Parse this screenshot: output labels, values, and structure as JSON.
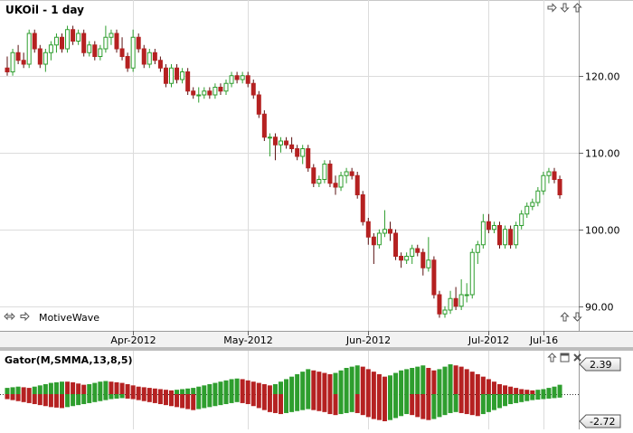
{
  "header": {
    "title": "UKOil - 1 day"
  },
  "footer": {
    "brand": "MotiveWave"
  },
  "colors": {
    "up": "#2e9e2e",
    "down": "#b52121",
    "grid": "#dcdcdc",
    "axis": "#9a9a9a"
  },
  "icons": {
    "top_right": [
      "arrow-right-icon",
      "arrow-down-icon",
      "arrow-up-icon"
    ],
    "bottom_left": [
      "double-arrow-icon",
      "arrow-right-icon"
    ],
    "bottom_right": [
      "arrow-up-icon",
      "arrow-down-icon"
    ],
    "indicator": [
      "arrow-up-icon",
      "window-icon",
      "close-icon"
    ]
  },
  "chart_data": [
    {
      "type": "candlestick",
      "title": "UKOil - 1 day",
      "ylim": [
        87.5,
        127.5
      ],
      "y_ticks": [
        {
          "v": 90,
          "label": "90.00"
        },
        {
          "v": 100,
          "label": "100.00"
        },
        {
          "v": 110,
          "label": "110.00"
        },
        {
          "v": 120,
          "label": "120.00"
        }
      ],
      "x_ticks": [
        {
          "i": 23,
          "label": "Apr-2012"
        },
        {
          "i": 44,
          "label": "May-2012"
        },
        {
          "i": 66,
          "label": "Jun-2012"
        },
        {
          "i": 88,
          "label": "Jul-2012"
        },
        {
          "i": 98,
          "label": "Jul-16"
        }
      ],
      "ohlc": [
        [
          121,
          122.5,
          120,
          120.5
        ],
        [
          120.5,
          123.5,
          120,
          123
        ],
        [
          123,
          124,
          121.5,
          122
        ],
        [
          122,
          123,
          121,
          121.5
        ],
        [
          121.5,
          126,
          121,
          125.5
        ],
        [
          125.5,
          126,
          123,
          123.5
        ],
        [
          123.5,
          124,
          121,
          121.5
        ],
        [
          121.5,
          123.5,
          120.5,
          123
        ],
        [
          123,
          124.5,
          122,
          124
        ],
        [
          124,
          125.5,
          123,
          125
        ],
        [
          125,
          125.5,
          123,
          123.5
        ],
        [
          123.5,
          126.5,
          123,
          126
        ],
        [
          126,
          126.5,
          124,
          124.5
        ],
        [
          124.5,
          126,
          124,
          125.5
        ],
        [
          125.5,
          126,
          122.5,
          123
        ],
        [
          123,
          124.5,
          122.5,
          124
        ],
        [
          124,
          124.5,
          122,
          122.5
        ],
        [
          122.5,
          124,
          122,
          123.5
        ],
        [
          123.5,
          126.5,
          123,
          125
        ],
        [
          125,
          126,
          124,
          125.5
        ],
        [
          125.5,
          126,
          123,
          123.5
        ],
        [
          123.5,
          125,
          122,
          122.5
        ],
        [
          122.5,
          123,
          120.5,
          121
        ],
        [
          121,
          126,
          120.5,
          125
        ],
        [
          125,
          125.5,
          123,
          123.5
        ],
        [
          123.5,
          124,
          121,
          121.5
        ],
        [
          121.5,
          123.5,
          121,
          123
        ],
        [
          123,
          123.5,
          121.5,
          122
        ],
        [
          122,
          122.5,
          120.5,
          121
        ],
        [
          121,
          121.5,
          118.5,
          119
        ],
        [
          119,
          121.5,
          118.5,
          121
        ],
        [
          121,
          121.5,
          119,
          119.5
        ],
        [
          119.5,
          121,
          119,
          120.5
        ],
        [
          120.5,
          121,
          117.5,
          118
        ],
        [
          118,
          118.5,
          117,
          117.5
        ],
        [
          117.5,
          118.5,
          116.5,
          117.5
        ],
        [
          117.5,
          118.5,
          117,
          118
        ],
        [
          118,
          118.5,
          117,
          117.5
        ],
        [
          117.5,
          119,
          117,
          118.5
        ],
        [
          118.5,
          119,
          117.5,
          118
        ],
        [
          118,
          119.5,
          117.5,
          119
        ],
        [
          119,
          120.5,
          118.5,
          120
        ],
        [
          120,
          120.5,
          119,
          119.5
        ],
        [
          119.5,
          120.5,
          119,
          120
        ],
        [
          120,
          120.5,
          118.5,
          119
        ],
        [
          119,
          119.5,
          117,
          117.5
        ],
        [
          117.5,
          118,
          114.5,
          115
        ],
        [
          115,
          115.5,
          111.5,
          112
        ],
        [
          112,
          112.5,
          109.5,
          112
        ],
        [
          112,
          112.5,
          109,
          111
        ],
        [
          111,
          112,
          110,
          111.5
        ],
        [
          111.5,
          112,
          110.5,
          111
        ],
        [
          111,
          112,
          110,
          110.5
        ],
        [
          110.5,
          111,
          109,
          109.5
        ],
        [
          109.5,
          111,
          108.5,
          110.5
        ],
        [
          110.5,
          111,
          107.5,
          108
        ],
        [
          108,
          108.5,
          105.5,
          106
        ],
        [
          106,
          107,
          105.5,
          106.5
        ],
        [
          106.5,
          109,
          106,
          108.5
        ],
        [
          108.5,
          109,
          105.5,
          106
        ],
        [
          106,
          107,
          104.5,
          105.5
        ],
        [
          105.5,
          107.5,
          105,
          107
        ],
        [
          107,
          108,
          106,
          107.5
        ],
        [
          107.5,
          108,
          106.5,
          107
        ],
        [
          107,
          107.5,
          104,
          104.5
        ],
        [
          104.5,
          105,
          100.5,
          101
        ],
        [
          101,
          101.5,
          98,
          99
        ],
        [
          99,
          99.5,
          95.5,
          98
        ],
        [
          98,
          100,
          97.5,
          99.5
        ],
        [
          99.5,
          102.5,
          99,
          100
        ],
        [
          100,
          101,
          98.5,
          99.5
        ],
        [
          99.5,
          100,
          96,
          96.5
        ],
        [
          96.5,
          97,
          95,
          96
        ],
        [
          96,
          97,
          95.5,
          96.5
        ],
        [
          96.5,
          98,
          95.5,
          97.5
        ],
        [
          97.5,
          98,
          96.5,
          97
        ],
        [
          97,
          97.5,
          94,
          95
        ],
        [
          95,
          99,
          94.5,
          96
        ],
        [
          96,
          96.5,
          91,
          91.5
        ],
        [
          91.5,
          92,
          88.5,
          89
        ],
        [
          89,
          90,
          88.5,
          89.5
        ],
        [
          89.5,
          92,
          89,
          91
        ],
        [
          91,
          92.5,
          89.5,
          90
        ],
        [
          90,
          93.5,
          89.5,
          91.5
        ],
        [
          91.5,
          93,
          90.5,
          91.5
        ],
        [
          91.5,
          97.5,
          91,
          97
        ],
        [
          97,
          98.5,
          95.5,
          98
        ],
        [
          98,
          102,
          97.5,
          101
        ],
        [
          101,
          102,
          99.5,
          100
        ],
        [
          100,
          101,
          99.5,
          100.5
        ],
        [
          100.5,
          101,
          97.5,
          98
        ],
        [
          98,
          100.5,
          97.5,
          100
        ],
        [
          100,
          100.5,
          97.5,
          98
        ],
        [
          98,
          101,
          97.5,
          100.5
        ],
        [
          100.5,
          102.5,
          100,
          102
        ],
        [
          102,
          103.5,
          101.5,
          103
        ],
        [
          103,
          104,
          102.5,
          103.5
        ],
        [
          103.5,
          105.5,
          103,
          105
        ],
        [
          105,
          107.5,
          104.5,
          107
        ],
        [
          107,
          108,
          106,
          107.5
        ],
        [
          107.5,
          108,
          106,
          106.5
        ],
        [
          106.5,
          107,
          104,
          104.5
        ]
      ]
    },
    {
      "type": "bar",
      "title": "Gator(M,SMMA,13,8,5)",
      "ylim": [
        -2.72,
        2.39
      ],
      "y_ticks": [
        {
          "v": 2.39,
          "label": "2.39"
        },
        {
          "v": -2.72,
          "label": "-2.72"
        }
      ],
      "series": [
        {
          "values": [
            0.5,
            0.55,
            0.6,
            0.55,
            0.5,
            0.6,
            0.7,
            0.8,
            0.9,
            0.95,
            1.0,
            1.0,
            0.95,
            0.85,
            0.75,
            0.8,
            0.9,
            1.0,
            1.05,
            1.0,
            0.95,
            0.9,
            0.8,
            0.7,
            0.6,
            0.55,
            0.5,
            0.45,
            0.4,
            0.35,
            0.3,
            0.35,
            0.4,
            0.45,
            0.5,
            0.6,
            0.7,
            0.8,
            0.9,
            1.0,
            1.1,
            1.2,
            1.25,
            1.2,
            1.1,
            1.0,
            0.9,
            0.8,
            0.7,
            0.8,
            1.0,
            1.2,
            1.4,
            1.6,
            1.8,
            2.0,
            1.9,
            1.8,
            1.7,
            1.6,
            1.7,
            1.9,
            2.1,
            2.2,
            2.3,
            2.2,
            2.0,
            1.8,
            1.6,
            1.4,
            1.5,
            1.7,
            1.9,
            2.0,
            2.1,
            2.2,
            2.3,
            2.1,
            1.9,
            2.0,
            2.2,
            2.39,
            2.3,
            2.2,
            2.0,
            1.8,
            1.6,
            1.4,
            1.2,
            1.0,
            0.8,
            0.7,
            0.6,
            0.5,
            0.4,
            0.35,
            0.3,
            0.35,
            0.4,
            0.5,
            0.6,
            0.75
          ],
          "colors": [
            "#2e9e2e",
            "#2e9e2e",
            "#2e9e2e",
            "#b52121",
            "#b52121",
            "#2e9e2e",
            "#2e9e2e",
            "#2e9e2e",
            "#2e9e2e",
            "#2e9e2e",
            "#2e9e2e",
            "#b52121",
            "#b52121",
            "#b52121",
            "#b52121",
            "#2e9e2e",
            "#2e9e2e",
            "#2e9e2e",
            "#2e9e2e",
            "#b52121",
            "#b52121",
            "#b52121",
            "#b52121",
            "#b52121",
            "#b52121",
            "#b52121",
            "#b52121",
            "#b52121",
            "#b52121",
            "#b52121",
            "#b52121",
            "#2e9e2e",
            "#2e9e2e",
            "#2e9e2e",
            "#2e9e2e",
            "#2e9e2e",
            "#2e9e2e",
            "#2e9e2e",
            "#2e9e2e",
            "#2e9e2e",
            "#2e9e2e",
            "#2e9e2e",
            "#2e9e2e",
            "#b52121",
            "#b52121",
            "#b52121",
            "#b52121",
            "#b52121",
            "#b52121",
            "#2e9e2e",
            "#2e9e2e",
            "#2e9e2e",
            "#2e9e2e",
            "#2e9e2e",
            "#2e9e2e",
            "#2e9e2e",
            "#b52121",
            "#b52121",
            "#b52121",
            "#b52121",
            "#2e9e2e",
            "#2e9e2e",
            "#2e9e2e",
            "#2e9e2e",
            "#2e9e2e",
            "#b52121",
            "#b52121",
            "#b52121",
            "#b52121",
            "#b52121",
            "#2e9e2e",
            "#2e9e2e",
            "#2e9e2e",
            "#2e9e2e",
            "#2e9e2e",
            "#2e9e2e",
            "#2e9e2e",
            "#b52121",
            "#b52121",
            "#2e9e2e",
            "#2e9e2e",
            "#2e9e2e",
            "#b52121",
            "#b52121",
            "#b52121",
            "#b52121",
            "#b52121",
            "#b52121",
            "#b52121",
            "#b52121",
            "#b52121",
            "#b52121",
            "#b52121",
            "#b52121",
            "#b52121",
            "#b52121",
            "#b52121",
            "#2e9e2e",
            "#2e9e2e",
            "#2e9e2e",
            "#2e9e2e",
            "#2e9e2e"
          ]
        },
        {
          "values": [
            -0.5,
            -0.6,
            -0.7,
            -0.8,
            -0.9,
            -1.0,
            -1.1,
            -1.2,
            -1.3,
            -1.35,
            -1.4,
            -1.3,
            -1.2,
            -1.1,
            -1.0,
            -0.9,
            -0.8,
            -0.7,
            -0.6,
            -0.5,
            -0.45,
            -0.4,
            -0.45,
            -0.5,
            -0.6,
            -0.7,
            -0.8,
            -0.9,
            -1.0,
            -1.1,
            -1.2,
            -1.3,
            -1.4,
            -1.5,
            -1.6,
            -1.5,
            -1.4,
            -1.3,
            -1.2,
            -1.1,
            -1.0,
            -0.9,
            -0.8,
            -0.9,
            -1.0,
            -1.2,
            -1.4,
            -1.6,
            -1.8,
            -1.9,
            -2.0,
            -1.9,
            -1.8,
            -1.7,
            -1.6,
            -1.5,
            -1.6,
            -1.7,
            -1.8,
            -2.0,
            -2.1,
            -2.0,
            -1.9,
            -1.8,
            -1.9,
            -2.1,
            -2.3,
            -2.5,
            -2.6,
            -2.72,
            -2.6,
            -2.4,
            -2.2,
            -2.0,
            -2.1,
            -2.3,
            -2.5,
            -2.6,
            -2.5,
            -2.3,
            -2.1,
            -1.9,
            -1.8,
            -1.9,
            -2.0,
            -2.1,
            -2.2,
            -2.0,
            -1.8,
            -1.6,
            -1.4,
            -1.2,
            -1.0,
            -0.9,
            -0.8,
            -0.7,
            -0.6,
            -0.55,
            -0.5,
            -0.45,
            -0.4,
            -0.35
          ],
          "colors": [
            "#b52121",
            "#b52121",
            "#b52121",
            "#b52121",
            "#b52121",
            "#b52121",
            "#b52121",
            "#b52121",
            "#b52121",
            "#b52121",
            "#b52121",
            "#2e9e2e",
            "#2e9e2e",
            "#2e9e2e",
            "#2e9e2e",
            "#2e9e2e",
            "#2e9e2e",
            "#2e9e2e",
            "#2e9e2e",
            "#2e9e2e",
            "#2e9e2e",
            "#2e9e2e",
            "#b52121",
            "#b52121",
            "#b52121",
            "#b52121",
            "#b52121",
            "#b52121",
            "#b52121",
            "#b52121",
            "#b52121",
            "#b52121",
            "#b52121",
            "#b52121",
            "#b52121",
            "#2e9e2e",
            "#2e9e2e",
            "#2e9e2e",
            "#2e9e2e",
            "#2e9e2e",
            "#2e9e2e",
            "#2e9e2e",
            "#2e9e2e",
            "#b52121",
            "#b52121",
            "#b52121",
            "#b52121",
            "#b52121",
            "#b52121",
            "#b52121",
            "#b52121",
            "#2e9e2e",
            "#2e9e2e",
            "#2e9e2e",
            "#2e9e2e",
            "#2e9e2e",
            "#b52121",
            "#b52121",
            "#b52121",
            "#b52121",
            "#b52121",
            "#2e9e2e",
            "#2e9e2e",
            "#2e9e2e",
            "#b52121",
            "#b52121",
            "#b52121",
            "#b52121",
            "#b52121",
            "#b52121",
            "#2e9e2e",
            "#2e9e2e",
            "#2e9e2e",
            "#2e9e2e",
            "#b52121",
            "#b52121",
            "#b52121",
            "#b52121",
            "#2e9e2e",
            "#2e9e2e",
            "#2e9e2e",
            "#2e9e2e",
            "#2e9e2e",
            "#b52121",
            "#b52121",
            "#b52121",
            "#b52121",
            "#2e9e2e",
            "#2e9e2e",
            "#2e9e2e",
            "#2e9e2e",
            "#2e9e2e",
            "#2e9e2e",
            "#2e9e2e",
            "#2e9e2e",
            "#2e9e2e",
            "#2e9e2e",
            "#2e9e2e",
            "#2e9e2e",
            "#2e9e2e",
            "#2e9e2e",
            "#2e9e2e"
          ]
        }
      ]
    }
  ]
}
